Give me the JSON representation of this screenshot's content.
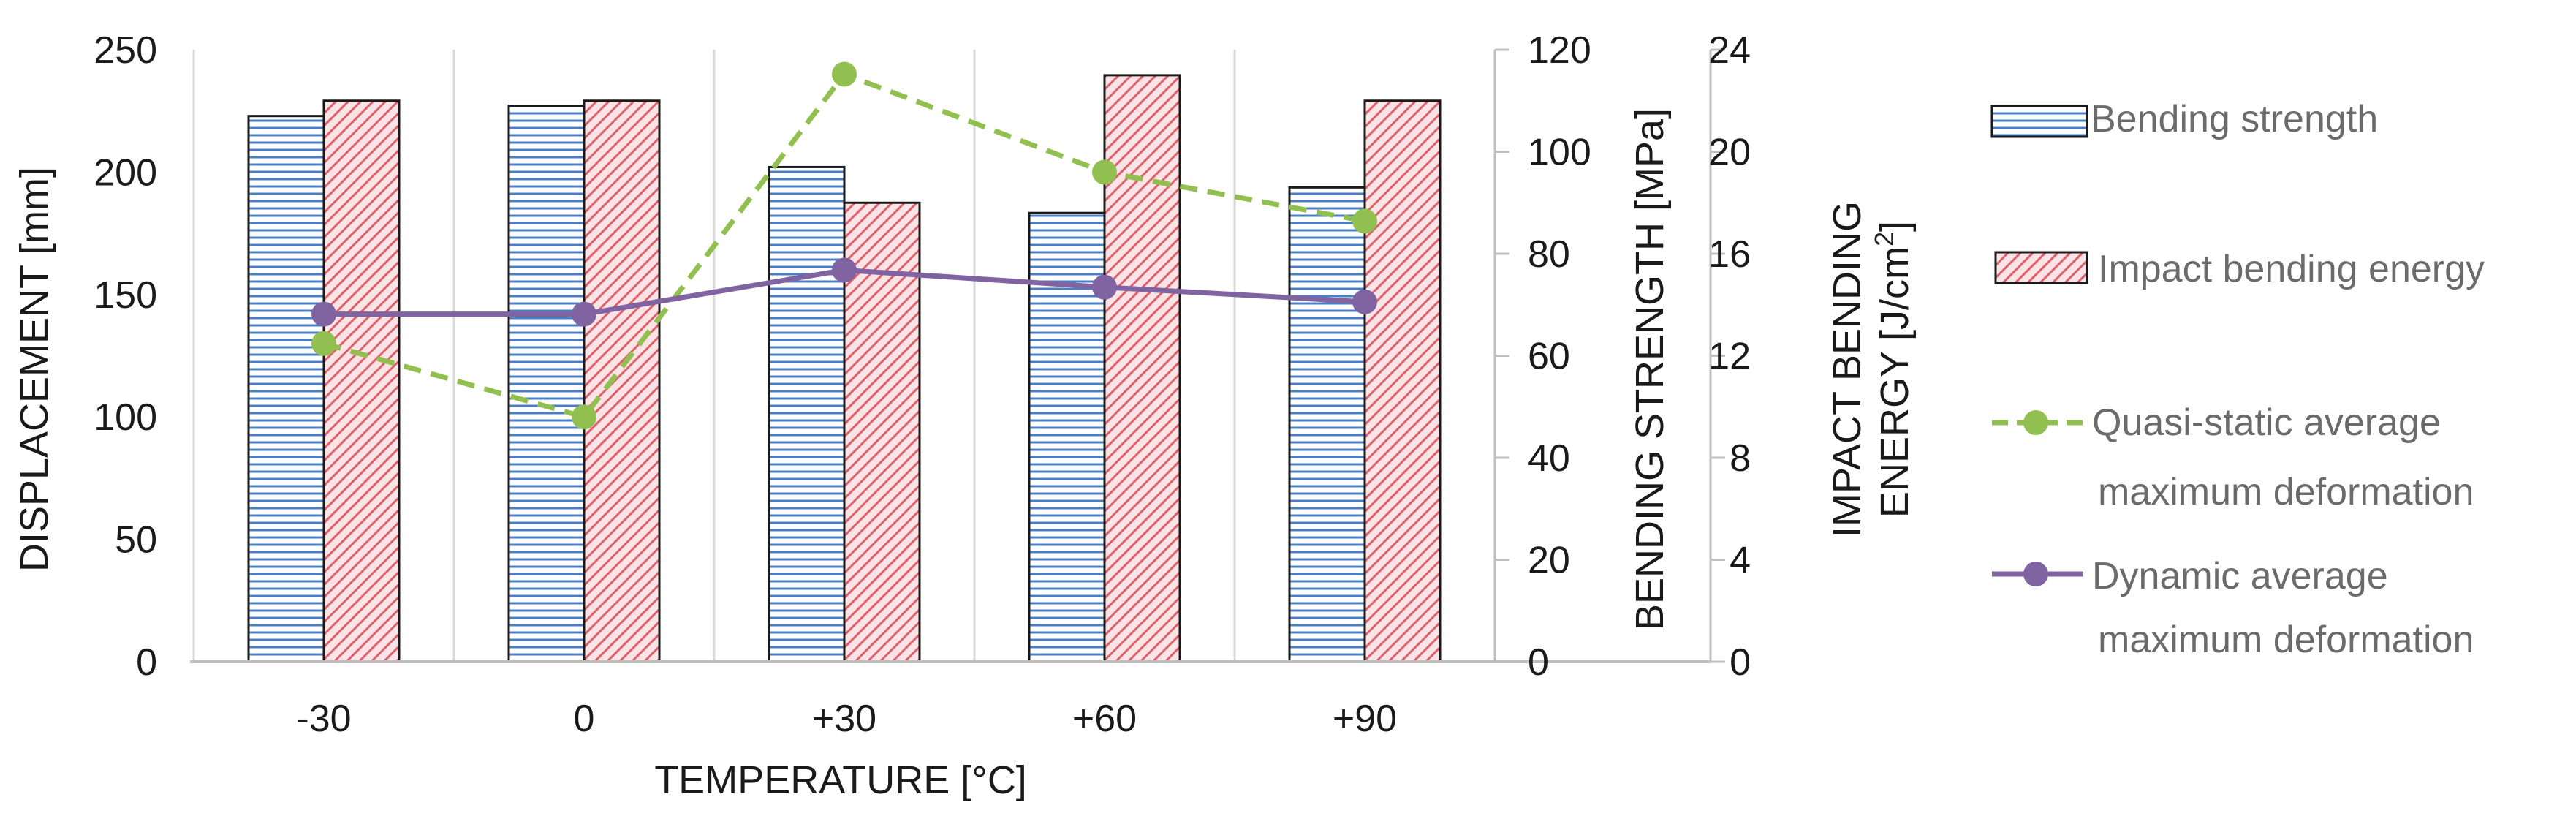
{
  "chart_data": {
    "type": "bar",
    "categories": [
      "-30",
      "0",
      "+30",
      "+60",
      "+90"
    ],
    "xlabel": "TEMPERATURE [°C]",
    "axes": {
      "left": {
        "label": "DISPLACEMENT [mm]",
        "ylim": [
          0,
          250
        ],
        "ticks": [
          0,
          50,
          100,
          150,
          200,
          250
        ]
      },
      "right1": {
        "label": "BENDING STRENGTH [MPa]",
        "ylim": [
          0,
          120
        ],
        "ticks": [
          0,
          20,
          40,
          60,
          80,
          100,
          120
        ]
      },
      "right2": {
        "label_line1": "IMPACT BENDING",
        "label_line2_main": "ENERGY [J/cm",
        "label_line2_sup": "2",
        "label_line2_end": "]",
        "ylim": [
          0,
          24
        ],
        "ticks": [
          0,
          4,
          8,
          12,
          16,
          20,
          24
        ]
      }
    },
    "series": [
      {
        "name": "Bending strength",
        "kind": "bar",
        "axis": "right1",
        "pattern": "horizontal-lines",
        "color": "#4a7fc8",
        "values": [
          107,
          109,
          97,
          88,
          93
        ]
      },
      {
        "name": "Impact bending energy",
        "kind": "bar",
        "axis": "right2",
        "pattern": "diagonal-hatch",
        "color": "#e0606a",
        "fill": "#fce4e6",
        "values": [
          22,
          22,
          18,
          23,
          22
        ]
      },
      {
        "name": "Quasi-static average",
        "name_line2": "maximum  deformation",
        "kind": "line",
        "axis": "left",
        "style": "dashed",
        "color": "#92c050",
        "values": [
          130,
          100,
          240,
          200,
          180
        ]
      },
      {
        "name": "Dynamic average",
        "name_line2": "maximum  deformation",
        "kind": "line",
        "axis": "left",
        "style": "solid",
        "color": "#8064a2",
        "values": [
          142,
          142,
          160,
          153,
          147
        ]
      }
    ],
    "legend_position": "right"
  }
}
